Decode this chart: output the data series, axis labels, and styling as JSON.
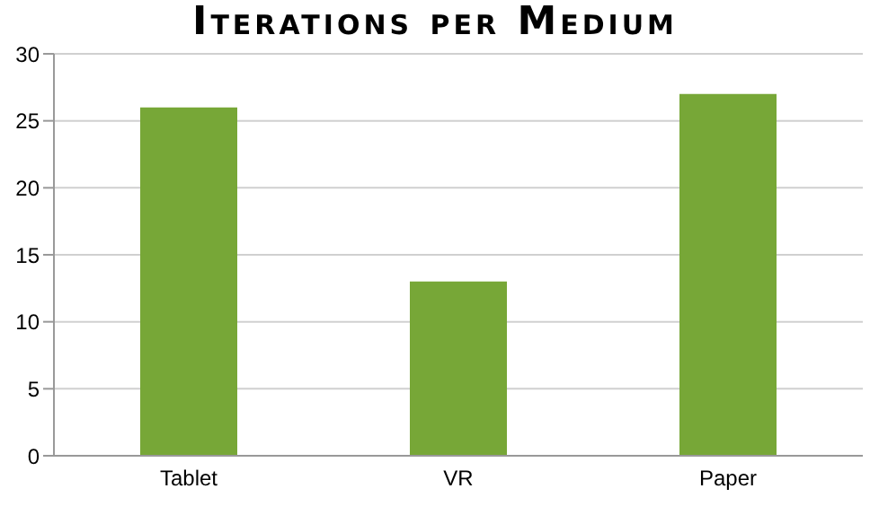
{
  "chart_data": {
    "type": "bar",
    "title": "Iterations per Medium",
    "categories": [
      "Tablet",
      "VR",
      "Paper"
    ],
    "values": [
      26,
      13,
      27
    ],
    "color": "#77a737",
    "ylim": [
      0,
      30
    ],
    "yticks": [
      0,
      5,
      10,
      15,
      20,
      25,
      30
    ],
    "grid": "y"
  }
}
